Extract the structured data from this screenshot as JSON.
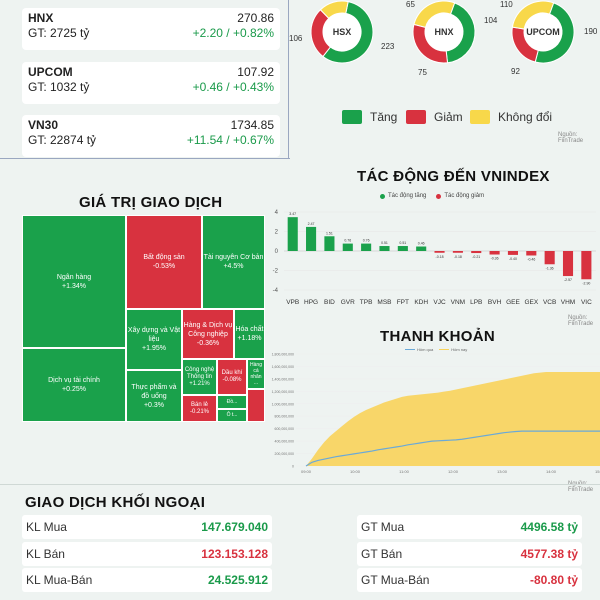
{
  "indices": [
    {
      "name": "HNX",
      "value": "270.86",
      "gt": "GT: 2725 tỷ",
      "change": "+2.20 / +0.82%"
    },
    {
      "name": "UPCOM",
      "value": "107.92",
      "gt": "GT: 1032 tỷ",
      "change": "+0.46 / +0.43%"
    },
    {
      "name": "VN30",
      "value": "1734.85",
      "gt": "GT: 22874 tỷ",
      "change": "+11.54 / +0.67%"
    }
  ],
  "breadth": {
    "donuts": [
      {
        "label": "HSX",
        "up": 223,
        "down": 106,
        "flat": 60,
        "up_text": "223",
        "down_text": "106"
      },
      {
        "label": "HNX",
        "up": 104,
        "down": 75,
        "flat": 65,
        "up_text": "104",
        "down_text": "75",
        "flat_text": "65"
      },
      {
        "label": "UPCOM",
        "up": 190,
        "down": 92,
        "flat": 110,
        "up_text": "190",
        "down_text": "92",
        "flat_text": "110"
      }
    ],
    "legend": {
      "up": "Tăng",
      "down": "Giảm",
      "flat": "Không đổi"
    },
    "colors": {
      "up": "#1aa14b",
      "down": "#d8323f",
      "flat": "#f8d84a"
    },
    "source": "Nguồn: FiinTrade"
  },
  "treemap": {
    "title": "GIÁ TRỊ GIAO DỊCH",
    "cells": [
      {
        "name": "Ngân hàng",
        "change": "+1.34%",
        "color": "up"
      },
      {
        "name": "Dịch vụ tài chính",
        "change": "+0.25%",
        "color": "up"
      },
      {
        "name": "Bất động sản",
        "change": "-0.53%",
        "color": "down"
      },
      {
        "name": "Tài nguyên Cơ bản",
        "change": "+4.5%",
        "color": "up"
      },
      {
        "name": "Xây dựng và Vật liệu",
        "change": "+1.95%",
        "color": "up"
      },
      {
        "name": "Hàng & Dịch vụ Công nghiệp",
        "change": "-0.36%",
        "color": "down"
      },
      {
        "name": "Hóa chất",
        "change": "+1.18%",
        "color": "up"
      },
      {
        "name": "Thực phẩm và đồ uống",
        "change": "+0.3%",
        "color": "up"
      },
      {
        "name": "Công nghệ Thông tin",
        "change": "+1.21%",
        "color": "up"
      },
      {
        "name": "Dầu khí",
        "change": "-0.08%",
        "color": "down"
      },
      {
        "name": "Hàng cá nhân",
        "change": "...",
        "color": "up"
      },
      {
        "name": "Bán lẻ",
        "change": "-0.21%",
        "color": "down"
      },
      {
        "name": "Đồ...",
        "change": "",
        "color": "up"
      },
      {
        "name": "Ô t...",
        "change": "",
        "color": "up"
      }
    ]
  },
  "impact": {
    "title": "TÁC ĐỘNG ĐẾN VNINDEX",
    "legend_up": "Tác động tăng",
    "legend_down": "Tác động giảm",
    "source": "Nguồn: FiinTrade",
    "chart_data": {
      "type": "bar",
      "categories": [
        "VPB",
        "HPG",
        "BID",
        "GVR",
        "TPB",
        "MSB",
        "FPT",
        "KDH",
        "VJC",
        "VNM",
        "LPB",
        "BVH",
        "GEE",
        "GEX",
        "VCB",
        "VHM",
        "VIC"
      ],
      "values": [
        3.47,
        2.47,
        1.51,
        0.76,
        0.76,
        0.51,
        0.51,
        0.46,
        -0.18,
        -0.18,
        -0.21,
        -0.36,
        -0.4,
        -0.46,
        -1.36,
        -2.57,
        -2.9
      ],
      "value_labels": [
        "3.47",
        "2.47",
        "1.51",
        "0.76",
        "0.76",
        "0.51",
        "0.51",
        "0.46",
        "-0.18",
        "-0.18",
        "-0.21",
        "-0.36",
        "-0.40",
        "-0.46",
        "-1.36",
        "-2.57",
        "-2.90"
      ],
      "ylim": [
        -4,
        4
      ],
      "yticks": [
        4,
        2,
        0,
        -2,
        -4
      ],
      "colors": {
        "up": "#1aa14b",
        "down": "#d8323f"
      }
    }
  },
  "liquidity": {
    "title": "THANH KHOẢN",
    "source": "Nguồn: FiinTrade",
    "chart_data": {
      "type": "area",
      "series": [
        {
          "name": "Hôm qua",
          "values": [
            0,
            60000000,
            90000000,
            110000000,
            130000000,
            150000000,
            165000000,
            180000000,
            195000000,
            210000000,
            225000000,
            240000000,
            260000000,
            275000000,
            290000000,
            305000000,
            320000000,
            340000000,
            355000000,
            370000000,
            385000000,
            400000000,
            405000000,
            410000000,
            415000000,
            420000000,
            430000000,
            445000000,
            460000000,
            475000000,
            490000000,
            505000000,
            520000000,
            535000000,
            545000000,
            555000000,
            560000000,
            560000000,
            560000000,
            560000000,
            560000000,
            560000000,
            560000000,
            560000000,
            560000000,
            560000000,
            560000000,
            560000000,
            560000000,
            560000000
          ]
        },
        {
          "name": "Hôm nay",
          "values": [
            0,
            120000000,
            260000000,
            380000000,
            480000000,
            560000000,
            640000000,
            720000000,
            790000000,
            850000000,
            900000000,
            940000000,
            980000000,
            1020000000,
            1050000000,
            1080000000,
            1110000000,
            1130000000,
            1140000000,
            1150000000,
            1160000000,
            1170000000,
            1180000000,
            1195000000,
            1210000000,
            1230000000,
            1250000000,
            1270000000,
            1290000000,
            1310000000,
            1330000000,
            1350000000,
            1370000000,
            1390000000,
            1410000000,
            1430000000,
            1450000000,
            1470000000,
            1490000000,
            1500000000,
            1510000000,
            1510000000,
            1510000000,
            1510000000,
            1510000000,
            1510000000,
            1510000000,
            1510000000,
            1510000000,
            1510000000
          ]
        }
      ],
      "ylim": [
        0,
        1800000000
      ],
      "yticks": [
        "1,800,000,000",
        "1,600,000,000",
        "1,400,000,000",
        "1,200,000,000",
        "1,000,000,000",
        "800,000,000",
        "600,000,000",
        "400,000,000",
        "200,000,000",
        "0"
      ],
      "xticks": [
        "09:00",
        "10:00",
        "11:00",
        "12:00",
        "13:00",
        "14:00",
        "15:00"
      ],
      "colors": {
        "today": "#f8d35a",
        "yesterday": "#6aa9d8"
      }
    }
  },
  "foreign": {
    "title": "GIAO DỊCH KHỐI NGOẠI",
    "left": [
      {
        "label": "KL Mua",
        "value": "147.679.040",
        "color": "up"
      },
      {
        "label": "KL Bán",
        "value": "123.153.128",
        "color": "down"
      },
      {
        "label": "KL Mua-Bán",
        "value": "24.525.912",
        "color": "up"
      }
    ],
    "right": [
      {
        "label": "GT Mua",
        "value": "4496.58 tỷ",
        "color": "up"
      },
      {
        "label": "GT Bán",
        "value": "4577.38 tỷ",
        "color": "down"
      },
      {
        "label": "GT Mua-Bán",
        "value": "-80.80 tỷ",
        "color": "down"
      }
    ]
  }
}
